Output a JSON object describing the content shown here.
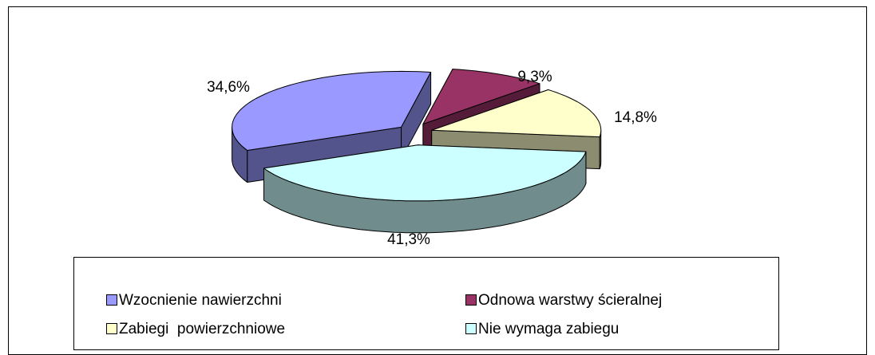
{
  "chart_data": {
    "type": "pie",
    "categories": [
      "Wzocnienie nawierzchni",
      "Odnowa warstwy ścieralnej",
      "Zabiegi  powierzchniowe",
      "Nie wymaga zabiegu"
    ],
    "values": [
      34.6,
      9.3,
      14.8,
      41.3
    ],
    "value_labels": [
      "34,6%",
      "9,3%",
      "14,8%",
      "41,3%"
    ],
    "colors": [
      "#9999ff",
      "#993366",
      "#ffffcc",
      "#ccffff"
    ],
    "legend": "bottom"
  }
}
